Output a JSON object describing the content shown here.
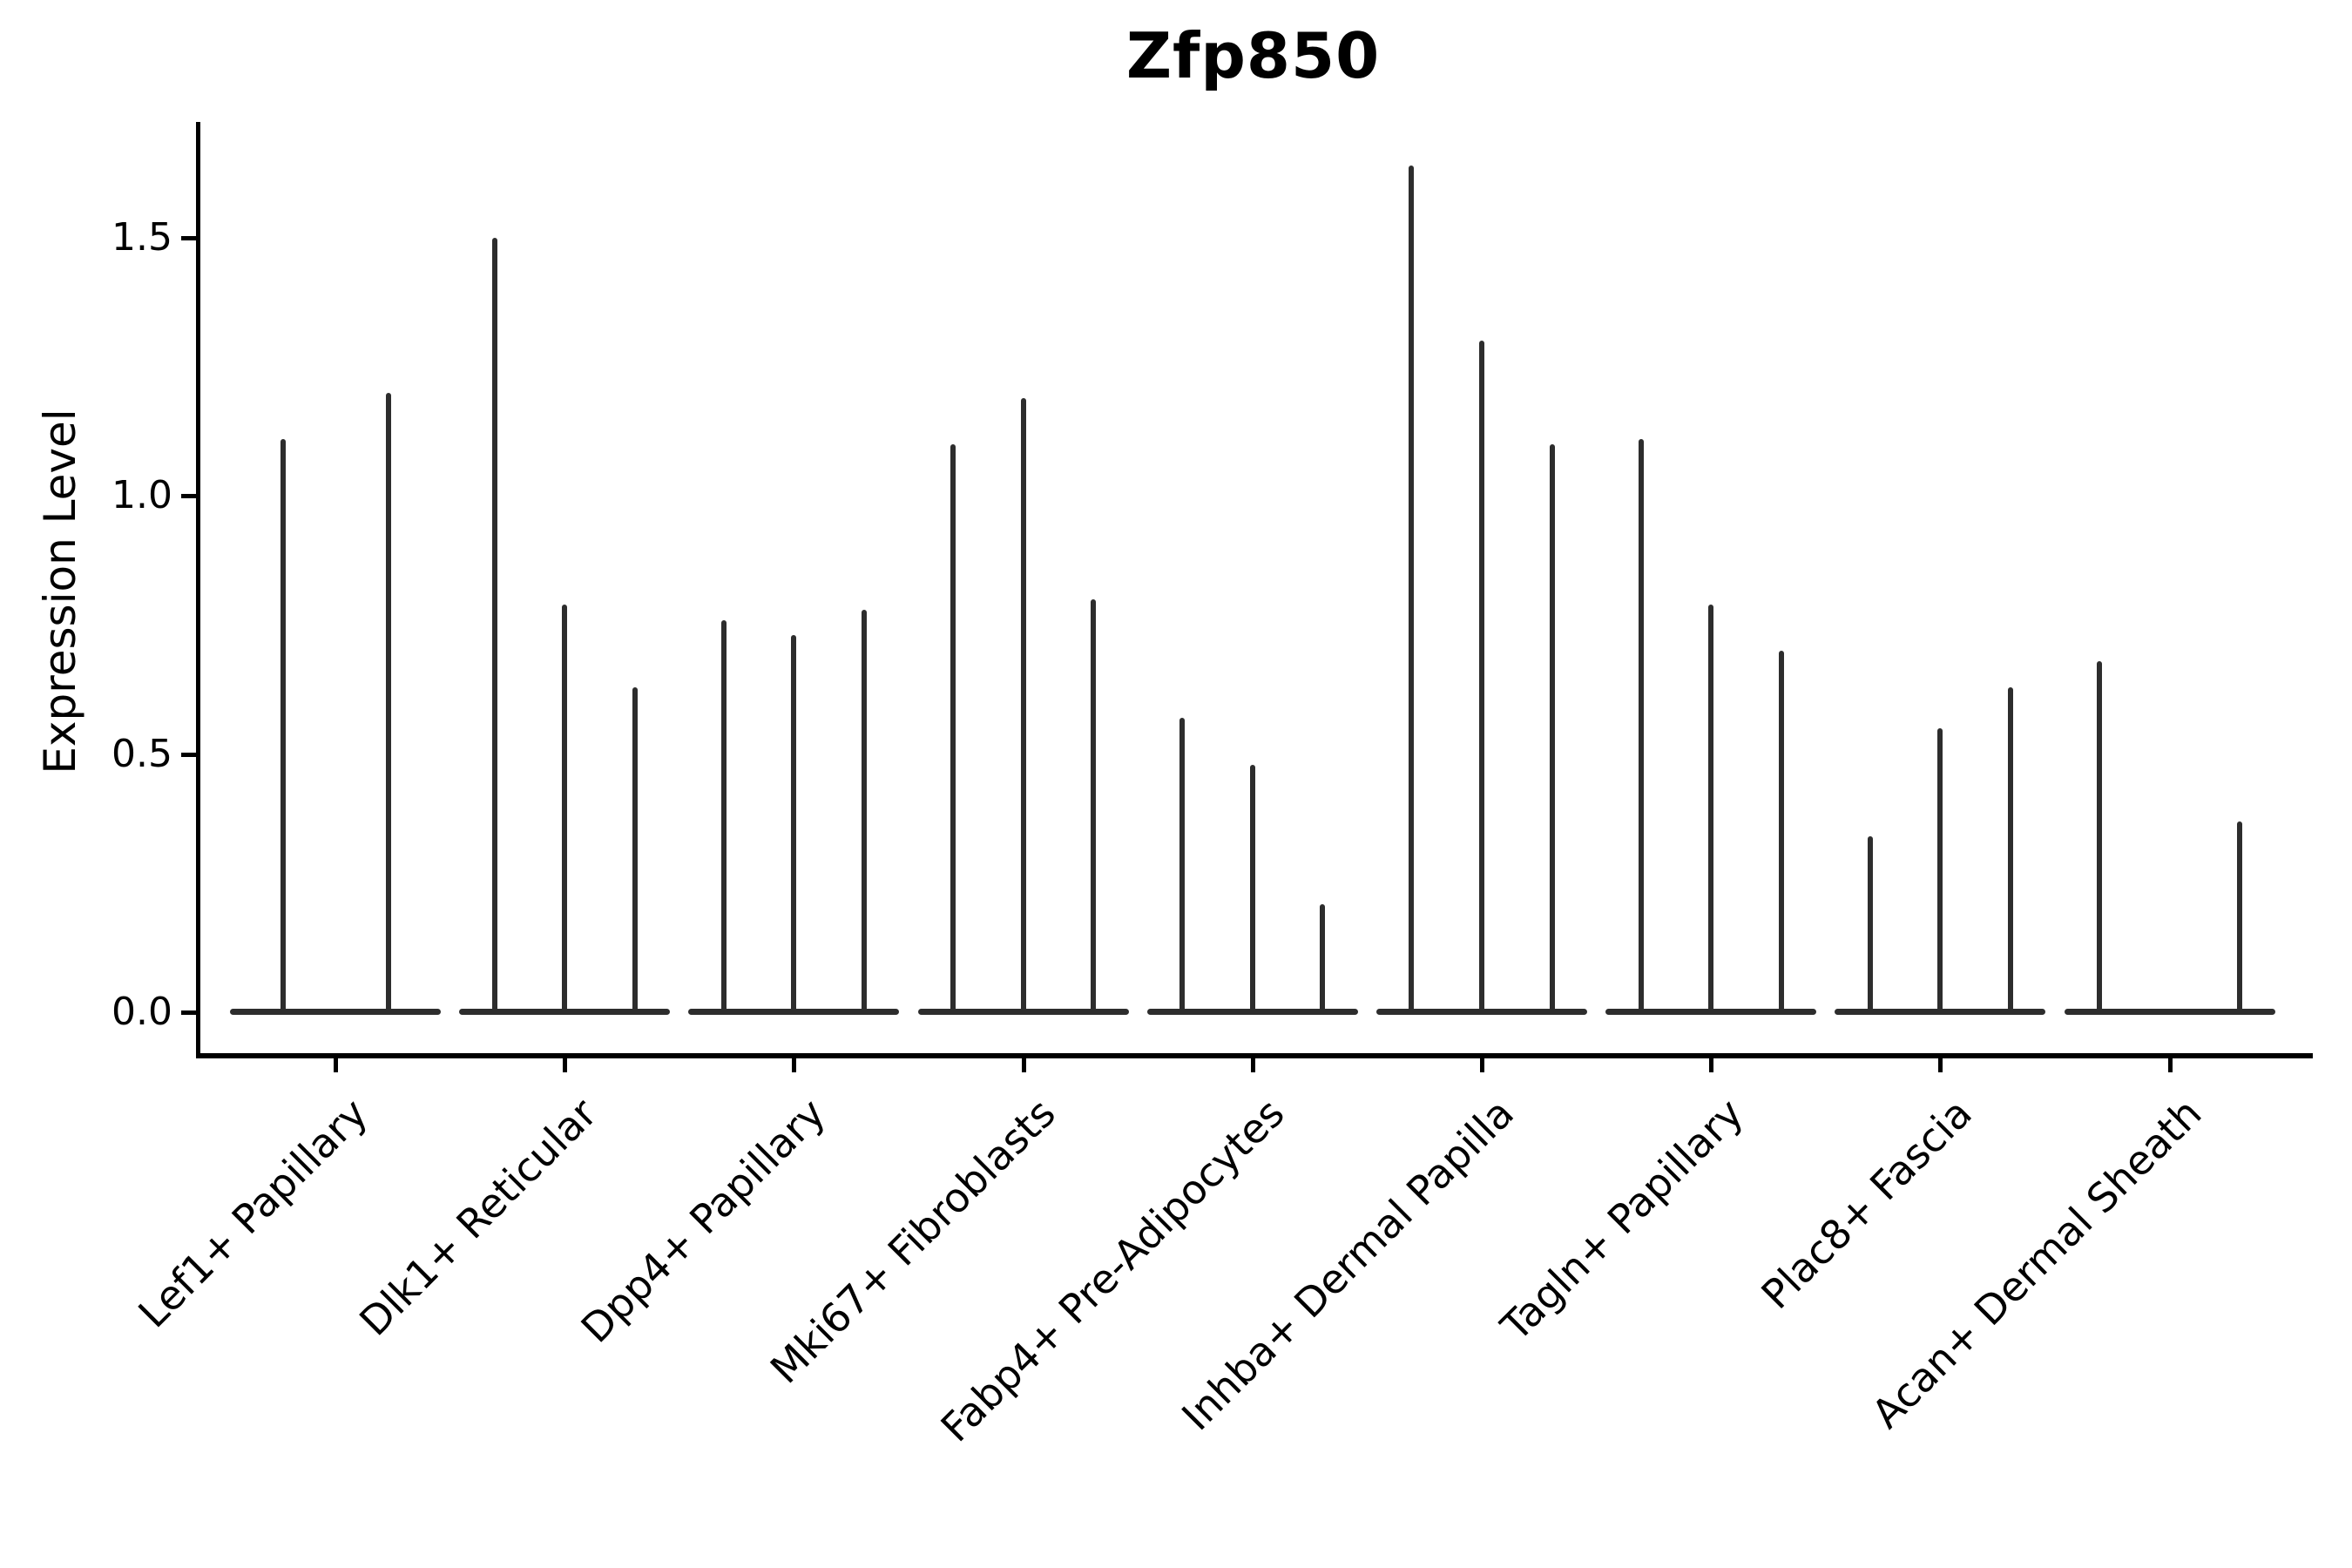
{
  "chart_data": {
    "type": "violin",
    "title": "Zfp850",
    "ylabel": "Expression Level",
    "xlabel": "",
    "grid": false,
    "legend": "none",
    "ylim": [
      0,
      1.72
    ],
    "yticks": [
      {
        "value": 0.0,
        "label": "0.0"
      },
      {
        "value": 0.5,
        "label": "0.5"
      },
      {
        "value": 1.0,
        "label": "1.0"
      },
      {
        "value": 1.5,
        "label": "1.5"
      }
    ],
    "categories": [
      "Lef1+ Papillary",
      "Dlk1+ Reticular",
      "Dpp4+ Papillary",
      "Mki67+ Fibroblasts",
      "Fabp4+ Pre-Adipocytes",
      "Inhba+ Dermal Papilla",
      "Tagln+ Papillary",
      "Plac8+ Fascia",
      "Acan+ Dermal Sheath"
    ],
    "groups": [
      {
        "label": "Lef1+ Papillary",
        "violin_max_values": [
          1.11,
          1.2
        ]
      },
      {
        "label": "Dlk1+ Reticular",
        "violin_max_values": [
          1.5,
          0.79,
          0.63
        ]
      },
      {
        "label": "Dpp4+ Papillary",
        "violin_max_values": [
          0.76,
          0.73,
          0.78
        ]
      },
      {
        "label": "Mki67+ Fibroblasts",
        "violin_max_values": [
          1.1,
          1.19,
          0.8
        ]
      },
      {
        "label": "Fabp4+ Pre-Adipocytes",
        "violin_max_values": [
          0.57,
          0.48,
          0.21
        ]
      },
      {
        "label": "Inhba+ Dermal Papilla",
        "violin_max_values": [
          1.64,
          1.3,
          1.1
        ]
      },
      {
        "label": "Tagln+ Papillary",
        "violin_max_values": [
          1.11,
          0.79,
          0.7
        ]
      },
      {
        "label": "Plac8+ Fascia",
        "violin_max_values": [
          0.34,
          0.55,
          0.63
        ]
      },
      {
        "label": "Acan+ Dermal Sheath",
        "violin_max_values": [
          0.68,
          0.0,
          0.37
        ]
      }
    ],
    "colors": {
      "violin": "#2d2d2d",
      "axis": "#000000",
      "text": "#000000",
      "background": "#ffffff"
    }
  }
}
